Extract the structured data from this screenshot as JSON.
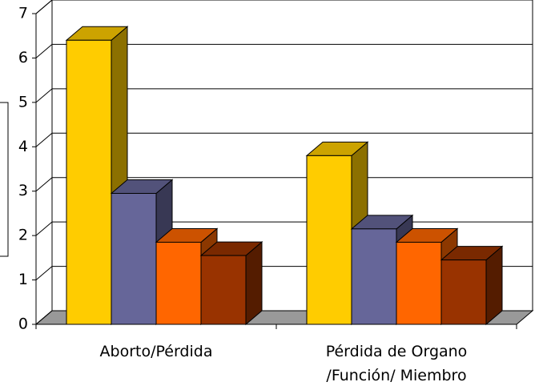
{
  "chart_data": {
    "type": "bar3d",
    "categories": [
      "Aborto/Pérdida",
      "Pérdida de Organo /Función/ Miembro"
    ],
    "series": [
      {
        "color": "#ffcc00",
        "values": [
          6.4,
          3.8
        ]
      },
      {
        "color": "#666699",
        "values": [
          2.95,
          2.15
        ]
      },
      {
        "color": "#ff6600",
        "values": [
          1.85,
          1.85
        ]
      },
      {
        "color": "#993300",
        "values": [
          1.55,
          1.45
        ]
      }
    ],
    "ylim": [
      0,
      7
    ],
    "yticks": [
      0,
      1,
      2,
      3,
      4,
      5,
      6,
      7
    ],
    "grid": true
  }
}
